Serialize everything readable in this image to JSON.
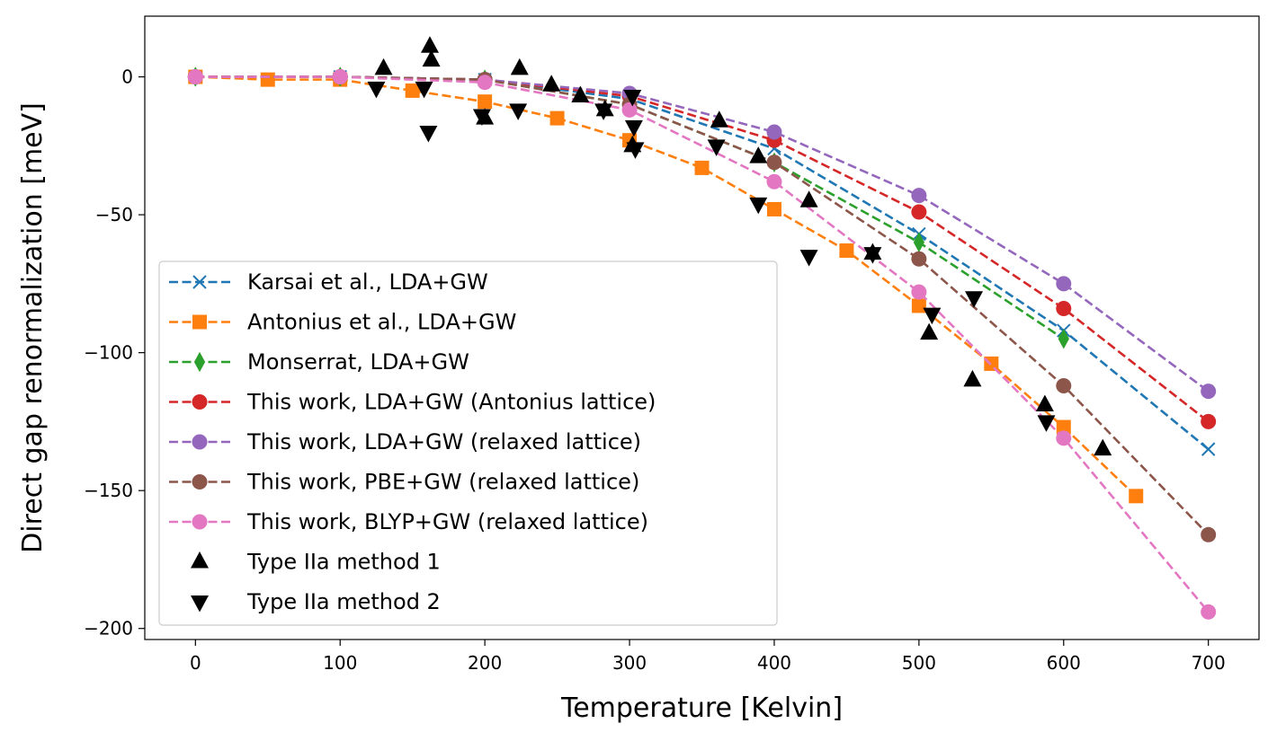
{
  "chart_data": {
    "type": "line",
    "title": "",
    "xlabel": "Temperature [Kelvin]",
    "ylabel": "Direct gap renormalization [meV]",
    "xlim": [
      -35,
      735
    ],
    "ylim": [
      -204,
      22
    ],
    "xticks": [
      0,
      100,
      200,
      300,
      400,
      500,
      600,
      700
    ],
    "xtick_labels": [
      "0",
      "100",
      "200",
      "300",
      "400",
      "500",
      "600",
      "700"
    ],
    "yticks": [
      0,
      -50,
      -100,
      -150,
      -200
    ],
    "ytick_labels": [
      "0",
      "−50",
      "−100",
      "−150",
      "−200"
    ],
    "grid": false,
    "legend_position": "lower-left",
    "series": [
      {
        "name": "Karsai et al., LDA+GW",
        "color": "#1f77b4",
        "marker": "x",
        "linestyle": "dashed",
        "x": [
          0,
          100,
          200,
          300,
          400,
          500,
          600,
          700
        ],
        "y": [
          0,
          0,
          -1,
          -8,
          -26,
          -57,
          -92,
          -135
        ]
      },
      {
        "name": "Antonius et al., LDA+GW",
        "color": "#ff7f0e",
        "marker": "square",
        "linestyle": "dashed",
        "x": [
          0,
          50,
          100,
          150,
          200,
          250,
          300,
          350,
          400,
          450,
          500,
          550,
          600,
          650
        ],
        "y": [
          0,
          -1,
          -1,
          -5,
          -9,
          -15,
          -23,
          -33,
          -48,
          -63,
          -83,
          -104,
          -127,
          -152
        ]
      },
      {
        "name": "Monserrat, LDA+GW",
        "color": "#2ca02c",
        "marker": "thin_diamond",
        "linestyle": "dashed",
        "x": [
          0,
          100,
          200,
          300,
          400,
          500,
          600
        ],
        "y": [
          0,
          0,
          -1,
          -10,
          -31,
          -60,
          -95
        ]
      },
      {
        "name": "This work, LDA+GW (Antonius lattice)",
        "color": "#d62728",
        "marker": "circle",
        "linestyle": "dashed",
        "x": [
          0,
          100,
          200,
          300,
          400,
          500,
          600,
          700
        ],
        "y": [
          0,
          0,
          -1,
          -7,
          -23,
          -49,
          -84,
          -125
        ]
      },
      {
        "name": "This work, LDA+GW (relaxed lattice)",
        "color": "#9467bd",
        "marker": "circle",
        "linestyle": "dashed",
        "x": [
          0,
          100,
          200,
          300,
          400,
          500,
          600,
          700
        ],
        "y": [
          0,
          0,
          -1,
          -6,
          -20,
          -43,
          -75,
          -114
        ]
      },
      {
        "name": "This work, PBE+GW (relaxed lattice)",
        "color": "#8c564b",
        "marker": "circle",
        "linestyle": "dashed",
        "x": [
          0,
          100,
          200,
          300,
          400,
          500,
          600,
          700
        ],
        "y": [
          0,
          0,
          -1,
          -10,
          -31,
          -66,
          -112,
          -166
        ]
      },
      {
        "name": "This work, BLYP+GW (relaxed lattice)",
        "color": "#e377c2",
        "marker": "circle",
        "linestyle": "dashed",
        "x": [
          0,
          100,
          200,
          300,
          400,
          500,
          600,
          700
        ],
        "y": [
          0,
          0,
          -2,
          -12,
          -38,
          -78,
          -131,
          -194
        ]
      },
      {
        "name": "Type IIa method 1",
        "color": "#000000",
        "marker": "triangle_up",
        "linestyle": "none",
        "x": [
          130,
          162,
          163,
          200,
          224,
          246,
          266,
          283,
          302,
          362,
          389,
          424,
          468,
          507,
          537,
          587,
          627
        ],
        "y": [
          3,
          11,
          6,
          -15,
          3,
          -3,
          -7,
          -12,
          -25,
          -16,
          -29,
          -45,
          -64,
          -93,
          -110,
          -119,
          -135
        ]
      },
      {
        "name": "Type IIa method 2",
        "color": "#000000",
        "marker": "triangle_down",
        "linestyle": "none",
        "x": [
          125,
          158,
          161,
          198,
          223,
          282,
          302,
          303,
          304,
          360,
          389,
          424,
          468,
          509,
          538,
          588
        ],
        "y": [
          -4,
          -4,
          -20,
          -14,
          -12,
          -12,
          -7,
          -18,
          -26,
          -25,
          -46,
          -65,
          -64,
          -86,
          -80,
          -125
        ]
      }
    ]
  }
}
